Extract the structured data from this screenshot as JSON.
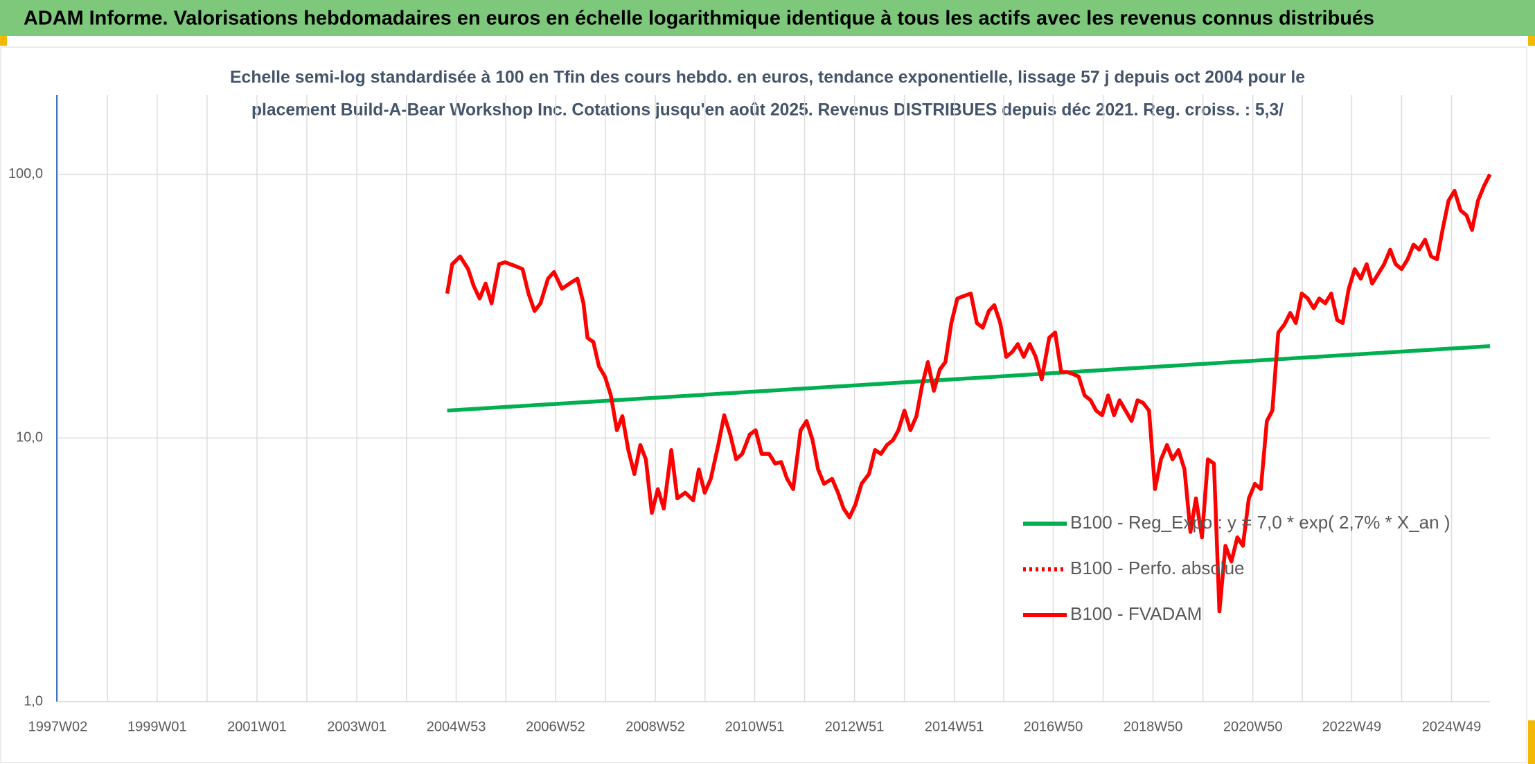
{
  "header": {
    "title": "ADAM Informe. Valorisations hebdomadaires en euros en échelle logarithmique identique à tous les actifs avec les revenus connus distribués"
  },
  "chart_data": {
    "type": "line",
    "title": [
      "Echelle semi-log standardisée à 100 en Tfin des cours hebdo. en euros, tendance exponentielle, lissage 57 j depuis oct 2004 pour le",
      "placement Build-A-Bear Workshop Inc. Cotations jusqu'en août 2025. Revenus DISTRIBUES depuis déc 2021. Reg. croiss. : 5,3/"
    ],
    "log_y": true,
    "grid": true,
    "legend_position": "right",
    "xlim": [
      1997,
      2025.71
    ],
    "ylim": [
      1,
      200
    ],
    "yticks": [
      {
        "value": 1,
        "label": "1,0"
      },
      {
        "value": 10,
        "label": "10,0"
      },
      {
        "value": 100,
        "label": "100,0"
      }
    ],
    "xticks": [
      {
        "value": 1997.02,
        "label": "1997W02"
      },
      {
        "value": 1999.01,
        "label": "1999W01"
      },
      {
        "value": 2001.01,
        "label": "2001W01"
      },
      {
        "value": 2003.01,
        "label": "2003W01"
      },
      {
        "value": 2005.0,
        "label": "2004W53"
      },
      {
        "value": 2006.99,
        "label": "2006W52"
      },
      {
        "value": 2008.99,
        "label": "2008W52"
      },
      {
        "value": 2010.98,
        "label": "2010W51"
      },
      {
        "value": 2012.98,
        "label": "2012W51"
      },
      {
        "value": 2014.98,
        "label": "2014W51"
      },
      {
        "value": 2016.96,
        "label": "2016W50"
      },
      {
        "value": 2018.96,
        "label": "2018W50"
      },
      {
        "value": 2020.96,
        "label": "2020W50"
      },
      {
        "value": 2022.94,
        "label": "2022W49"
      },
      {
        "value": 2024.94,
        "label": "2024W49"
      }
    ],
    "series": [
      {
        "name": "B100 - Reg_Expo : y = 7,0 * exp( 2,7% *  X_an )",
        "color": "#00b050",
        "style": "solid",
        "x": [
          2004.82,
          2025.71
        ],
        "values": [
          12.7,
          22.3
        ]
      },
      {
        "name": "B100 - Perfo. absolue",
        "color": "#ff0000",
        "style": "dotted",
        "x": [],
        "values": []
      },
      {
        "name": "B100 - FVADAM",
        "color": "#ff0000",
        "style": "solid",
        "x": [
          2004.82,
          2004.92,
          2005.08,
          2005.24,
          2005.35,
          2005.47,
          2005.59,
          2005.71,
          2005.86,
          2005.98,
          2006.18,
          2006.33,
          2006.45,
          2006.57,
          2006.69,
          2006.84,
          2006.96,
          2007.12,
          2007.27,
          2007.43,
          2007.55,
          2007.63,
          2007.75,
          2007.86,
          2007.98,
          2008.1,
          2008.22,
          2008.33,
          2008.45,
          2008.57,
          2008.69,
          2008.8,
          2008.92,
          2009.04,
          2009.16,
          2009.31,
          2009.43,
          2009.59,
          2009.75,
          2009.86,
          2009.98,
          2010.1,
          2010.25,
          2010.37,
          2010.49,
          2010.61,
          2010.73,
          2010.88,
          2011.0,
          2011.12,
          2011.27,
          2011.39,
          2011.51,
          2011.63,
          2011.75,
          2011.9,
          2012.02,
          2012.14,
          2012.25,
          2012.37,
          2012.53,
          2012.65,
          2012.76,
          2012.88,
          2013.0,
          2013.12,
          2013.27,
          2013.39,
          2013.51,
          2013.63,
          2013.75,
          2013.86,
          2013.98,
          2014.1,
          2014.22,
          2014.33,
          2014.45,
          2014.57,
          2014.69,
          2014.8,
          2014.92,
          2015.04,
          2015.2,
          2015.31,
          2015.43,
          2015.55,
          2015.67,
          2015.78,
          2015.9,
          2016.02,
          2016.14,
          2016.25,
          2016.37,
          2016.49,
          2016.61,
          2016.73,
          2016.88,
          2017.0,
          2017.12,
          2017.24,
          2017.35,
          2017.47,
          2017.59,
          2017.71,
          2017.82,
          2017.94,
          2018.06,
          2018.18,
          2018.29,
          2018.41,
          2018.53,
          2018.65,
          2018.76,
          2018.88,
          2019.0,
          2019.12,
          2019.24,
          2019.35,
          2019.47,
          2019.59,
          2019.71,
          2019.82,
          2019.94,
          2020.06,
          2020.18,
          2020.29,
          2020.41,
          2020.53,
          2020.65,
          2020.76,
          2020.88,
          2021.0,
          2021.12,
          2021.24,
          2021.35,
          2021.47,
          2021.59,
          2021.71,
          2021.82,
          2021.94,
          2022.06,
          2022.18,
          2022.29,
          2022.41,
          2022.53,
          2022.65,
          2022.76,
          2022.88,
          2023.0,
          2023.12,
          2023.24,
          2023.35,
          2023.47,
          2023.59,
          2023.71,
          2023.82,
          2023.94,
          2024.06,
          2024.18,
          2024.29,
          2024.41,
          2024.53,
          2024.65,
          2024.76,
          2024.88,
          2025.0,
          2025.12,
          2025.24,
          2025.35,
          2025.47,
          2025.59,
          2025.71
        ],
        "values": [
          35.3,
          45.6,
          48.8,
          43.7,
          37.8,
          33.8,
          38.5,
          32.4,
          45.6,
          46.4,
          44.9,
          43.7,
          35.3,
          30.3,
          32.4,
          40.2,
          42.6,
          36.8,
          38.5,
          40.2,
          32.4,
          24,
          23.1,
          18.7,
          17.1,
          14.5,
          10.7,
          12.1,
          9.0,
          7.3,
          9.4,
          8.3,
          5.2,
          6.4,
          5.4,
          9.0,
          5.9,
          6.2,
          5.8,
          7.6,
          6.2,
          7.0,
          9.4,
          12.2,
          10.3,
          8.3,
          8.7,
          10.3,
          10.7,
          8.7,
          8.7,
          8.0,
          8.1,
          7.0,
          6.4,
          10.7,
          11.6,
          9.8,
          7.6,
          6.7,
          7.0,
          6.2,
          5.4,
          5.0,
          5.6,
          6.7,
          7.3,
          9.0,
          8.7,
          9.4,
          9.8,
          10.7,
          12.7,
          10.7,
          12.1,
          15.7,
          19.4,
          15.1,
          18.2,
          19.4,
          27.3,
          33.8,
          34.7,
          35.3,
          27.3,
          26.2,
          30.3,
          31.9,
          27.3,
          20.3,
          21.2,
          22.7,
          20.3,
          22.7,
          20.3,
          16.7,
          24.0,
          25.1,
          17.8,
          17.8,
          17.5,
          17.1,
          14.5,
          13.9,
          12.7,
          12.2,
          14.5,
          12.2,
          13.9,
          12.7,
          11.6,
          13.9,
          13.6,
          12.7,
          6.4,
          8.3,
          9.4,
          8.3,
          9.0,
          7.6,
          4.4,
          5.9,
          4.2,
          8.3,
          8.0,
          2.2,
          3.9,
          3.4,
          4.2,
          3.9,
          5.9,
          6.7,
          6.4,
          11.6,
          12.7,
          25.1,
          26.9,
          29.8,
          27.3,
          35.3,
          33.8,
          31.0,
          33.8,
          32.4,
          35.3,
          28.0,
          27.3,
          36.8,
          43.7,
          40.2,
          45.6,
          38.5,
          41.9,
          45.6,
          51.8,
          45.6,
          43.7,
          47.6,
          54.1,
          51.8,
          56.5,
          48.8,
          47.6,
          61.5,
          79.4,
          86.5,
          73.0,
          69.9,
          61.5,
          79.4,
          90.3,
          100
        ]
      }
    ]
  }
}
